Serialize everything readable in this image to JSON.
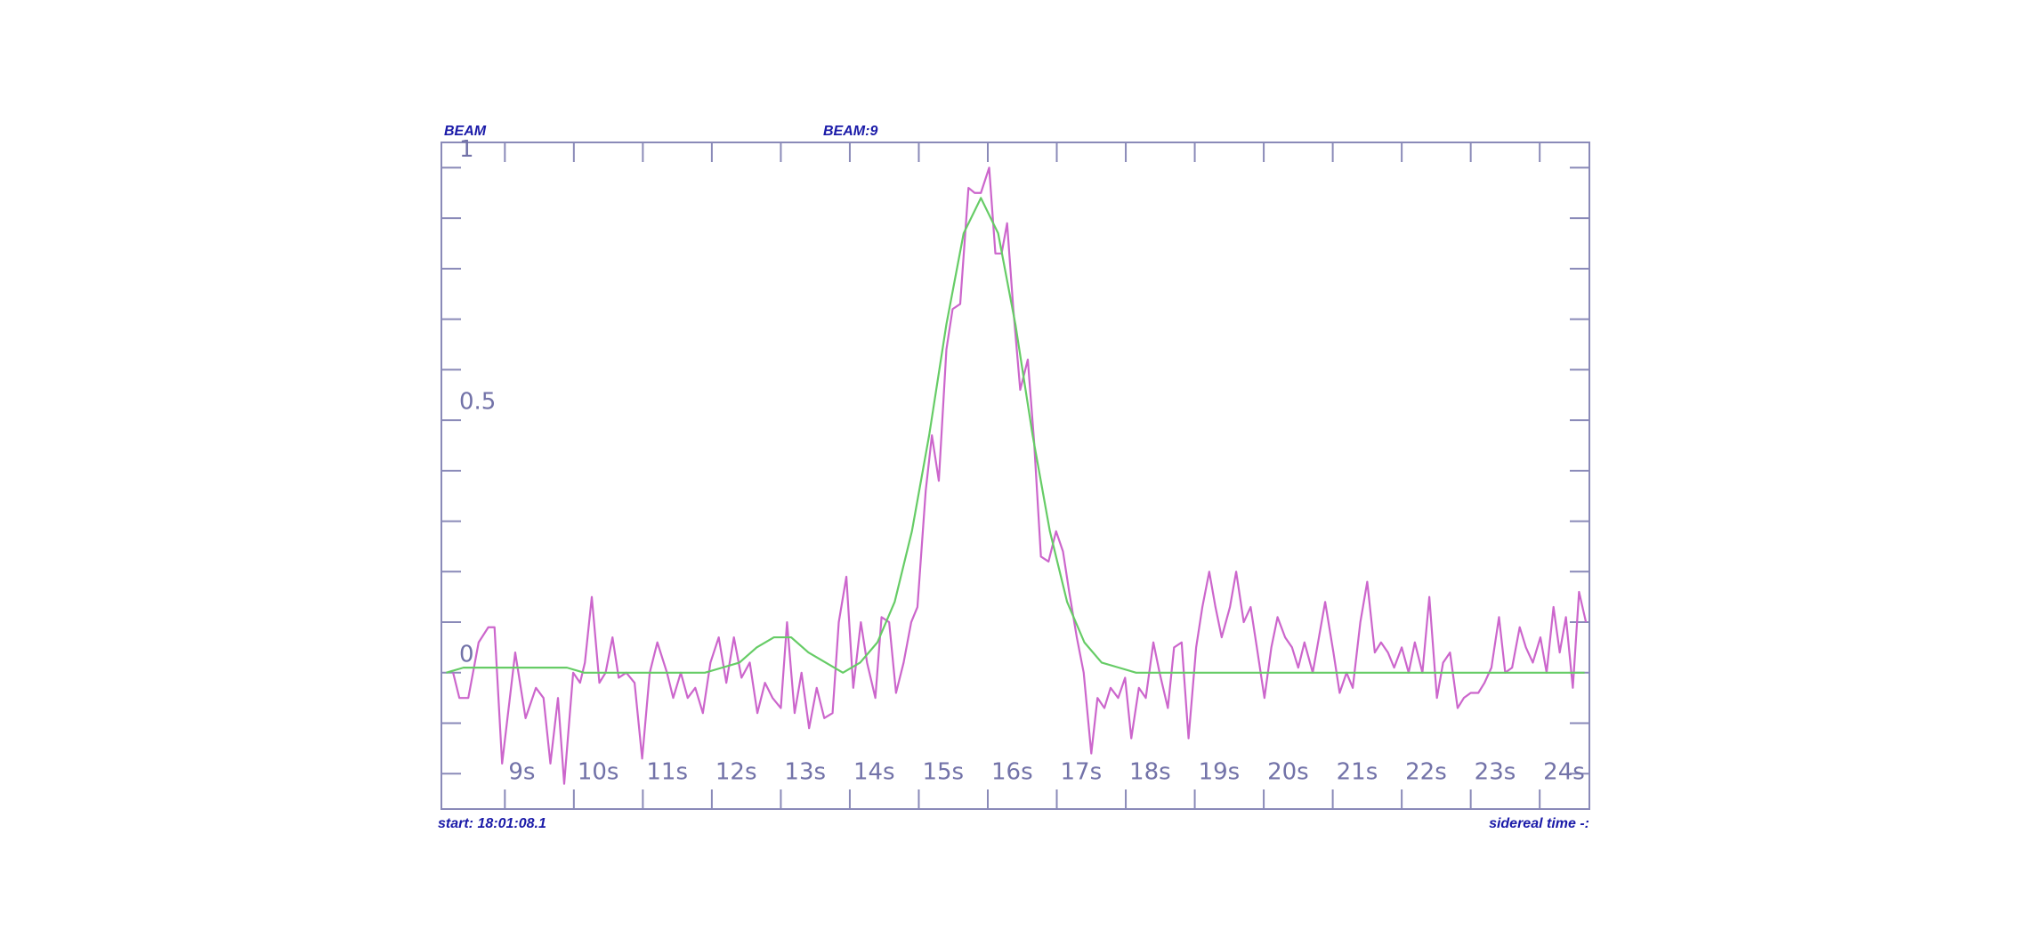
{
  "chart_data": {
    "type": "line",
    "header_left": "BEAM",
    "title": "BEAM:9",
    "start_label": "start: 18:01:08.1",
    "x_label": "sidereal time -:",
    "xlim": [
      8.08,
      24.72
    ],
    "ylim": [
      -0.27,
      1.05
    ],
    "xticks": [
      {
        "value": 9,
        "label": "9s"
      },
      {
        "value": 10,
        "label": "10s"
      },
      {
        "value": 11,
        "label": "11s"
      },
      {
        "value": 12,
        "label": "12s"
      },
      {
        "value": 13,
        "label": "13s"
      },
      {
        "value": 14,
        "label": "14s"
      },
      {
        "value": 15,
        "label": "15s"
      },
      {
        "value": 16,
        "label": "16s"
      },
      {
        "value": 17,
        "label": "17s"
      },
      {
        "value": 18,
        "label": "18s"
      },
      {
        "value": 19,
        "label": "19s"
      },
      {
        "value": 20,
        "label": "20s"
      },
      {
        "value": 21,
        "label": "21s"
      },
      {
        "value": 22,
        "label": "22s"
      },
      {
        "value": 23,
        "label": "23s"
      },
      {
        "value": 24,
        "label": "24s"
      }
    ],
    "yticks": [
      0,
      0.5,
      1
    ],
    "yminorticks": [
      -0.2,
      -0.1,
      0.1,
      0.2,
      0.3,
      0.4,
      0.6,
      0.7,
      0.8,
      0.9
    ],
    "grid": false,
    "series": [
      {
        "color": "#cc66cc",
        "x": [
          8.25,
          8.34,
          8.47,
          8.62,
          8.76,
          8.85,
          8.96,
          9.15,
          9.3,
          9.45,
          9.56,
          9.66,
          9.77,
          9.86,
          9.99,
          10.09,
          10.16,
          10.26,
          10.37,
          10.46,
          10.56,
          10.65,
          10.76,
          10.88,
          10.99,
          11.1,
          11.21,
          11.35,
          11.44,
          11.55,
          11.65,
          11.76,
          11.87,
          11.98,
          12.1,
          12.21,
          12.32,
          12.43,
          12.55,
          12.66,
          12.77,
          12.88,
          13.0,
          13.09,
          13.2,
          13.3,
          13.41,
          13.52,
          13.63,
          13.75,
          13.84,
          13.95,
          14.05,
          14.16,
          14.25,
          14.37,
          14.46,
          14.57,
          14.67,
          14.78,
          14.89,
          14.98,
          15.1,
          15.19,
          15.29,
          15.4,
          15.49,
          15.6,
          15.72,
          15.81,
          15.9,
          16.02,
          16.11,
          16.2,
          16.28,
          16.37,
          16.47,
          16.58,
          16.67,
          16.77,
          16.88,
          16.99,
          17.09,
          17.18,
          17.29,
          17.39,
          17.5,
          17.59,
          17.69,
          17.78,
          17.89,
          17.99,
          18.08,
          18.19,
          18.29,
          18.4,
          18.49,
          18.61,
          18.7,
          18.81,
          18.91,
          19.02,
          19.11,
          19.21,
          19.3,
          19.39,
          19.51,
          19.6,
          19.71,
          19.81,
          19.9,
          20.01,
          20.11,
          20.2,
          20.31,
          20.41,
          20.5,
          20.59,
          20.71,
          20.8,
          20.89,
          21.01,
          21.1,
          21.2,
          21.29,
          21.4,
          21.5,
          21.61,
          21.7,
          21.8,
          21.89,
          22.0,
          22.1,
          22.19,
          22.3,
          22.4,
          22.51,
          22.6,
          22.7,
          22.81,
          22.9,
          23.0,
          23.11,
          23.2,
          23.3,
          23.41,
          23.5,
          23.6,
          23.71,
          23.8,
          23.9,
          24.01,
          24.1,
          24.2,
          24.29,
          24.38,
          24.48,
          24.57,
          24.67
        ],
        "values": [
          0.0,
          -0.05,
          -0.05,
          0.06,
          0.09,
          0.09,
          -0.18,
          0.04,
          -0.09,
          -0.03,
          -0.05,
          -0.18,
          -0.05,
          -0.22,
          0.0,
          -0.02,
          0.02,
          0.15,
          -0.02,
          0.0,
          0.07,
          -0.01,
          0.0,
          -0.02,
          -0.17,
          0.0,
          0.06,
          0.0,
          -0.05,
          0.0,
          -0.05,
          -0.03,
          -0.08,
          0.02,
          0.07,
          -0.02,
          0.07,
          -0.01,
          0.02,
          -0.08,
          -0.02,
          -0.05,
          -0.07,
          0.1,
          -0.08,
          0.0,
          -0.11,
          -0.03,
          -0.09,
          -0.08,
          0.1,
          0.19,
          -0.03,
          0.1,
          0.02,
          -0.05,
          0.11,
          0.1,
          -0.04,
          0.02,
          0.1,
          0.13,
          0.36,
          0.47,
          0.38,
          0.64,
          0.72,
          0.73,
          0.96,
          0.95,
          0.95,
          1.0,
          0.83,
          0.83,
          0.89,
          0.72,
          0.56,
          0.62,
          0.46,
          0.23,
          0.22,
          0.28,
          0.24,
          0.16,
          0.07,
          0.0,
          -0.16,
          -0.05,
          -0.07,
          -0.03,
          -0.05,
          -0.01,
          -0.13,
          -0.03,
          -0.05,
          0.06,
          0.0,
          -0.07,
          0.05,
          0.06,
          -0.13,
          0.05,
          0.13,
          0.2,
          0.13,
          0.07,
          0.13,
          0.2,
          0.1,
          0.13,
          0.05,
          -0.05,
          0.05,
          0.11,
          0.07,
          0.05,
          0.01,
          0.06,
          0.0,
          0.07,
          0.14,
          0.04,
          -0.04,
          0.0,
          -0.03,
          0.1,
          0.18,
          0.04,
          0.06,
          0.04,
          0.01,
          0.05,
          0.0,
          0.06,
          0.0,
          0.15,
          -0.05,
          0.02,
          0.04,
          -0.07,
          -0.05,
          -0.04,
          -0.04,
          -0.02,
          0.01,
          0.11,
          0.0,
          0.01,
          0.09,
          0.05,
          0.02,
          0.07,
          0.0,
          0.13,
          0.04,
          0.11,
          -0.03,
          0.16,
          0.1
        ]
      },
      {
        "color": "#66cc66",
        "x": [
          8.15,
          8.4,
          8.65,
          8.9,
          9.15,
          9.4,
          9.65,
          9.9,
          10.15,
          10.4,
          10.65,
          10.9,
          11.15,
          11.4,
          11.65,
          11.9,
          12.15,
          12.4,
          12.65,
          12.9,
          13.15,
          13.4,
          13.65,
          13.9,
          14.15,
          14.4,
          14.65,
          14.9,
          15.15,
          15.4,
          15.65,
          15.9,
          16.15,
          16.4,
          16.65,
          16.9,
          17.15,
          17.4,
          17.65,
          17.9,
          18.15,
          18.4,
          18.65,
          18.9,
          19.15,
          19.4,
          19.65,
          19.9,
          20.15,
          20.4,
          20.65,
          20.9,
          21.15,
          21.4,
          21.65,
          21.9,
          22.15,
          22.4,
          22.65,
          22.9,
          23.15,
          23.4,
          23.65,
          23.9,
          24.15,
          24.4,
          24.65
        ],
        "values": [
          0,
          0.01,
          0.01,
          0.01,
          0.01,
          0.01,
          0.01,
          0.01,
          0,
          0,
          0,
          0,
          0,
          0,
          0,
          0,
          0.01,
          0.02,
          0.05,
          0.07,
          0.07,
          0.04,
          0.02,
          0,
          0.02,
          0.06,
          0.14,
          0.28,
          0.47,
          0.69,
          0.87,
          0.94,
          0.87,
          0.69,
          0.47,
          0.28,
          0.14,
          0.06,
          0.02,
          0.01,
          0,
          0,
          0,
          0,
          0,
          0,
          0,
          0,
          0,
          0,
          0,
          0,
          0,
          0,
          0,
          0,
          0,
          0,
          0,
          0,
          0,
          0,
          0,
          0,
          0,
          0,
          0
        ]
      }
    ]
  }
}
